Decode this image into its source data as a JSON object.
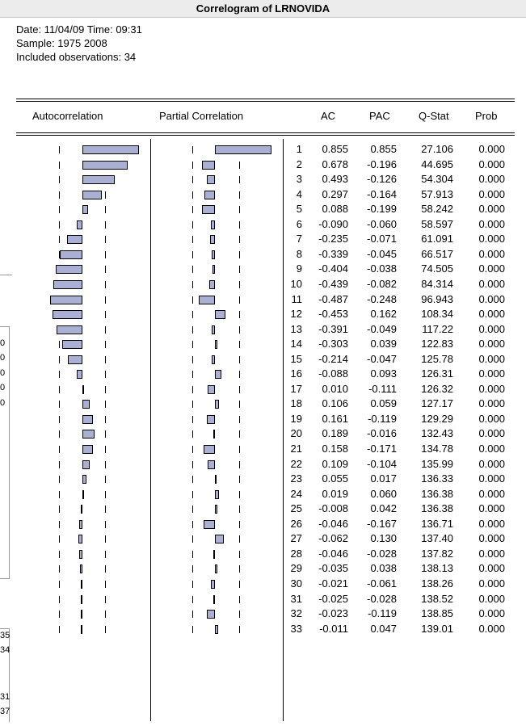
{
  "window": {
    "title": "Correlogram of LRNOVIDA"
  },
  "meta": {
    "date_line": "Date: 11/04/09   Time: 09:31",
    "sample_line": "Sample: 1975 2008",
    "obs_line": "Included observations: 34"
  },
  "headers": {
    "autocorrelation": "Autocorrelation",
    "partial_correlation": "Partial Correlation",
    "ac": "AC",
    "pac": "PAC",
    "qstat": "Q-Stat",
    "prob": "Prob"
  },
  "ghost_digits": [
    "0",
    "0",
    "0",
    "0",
    "0",
    "35",
    "34",
    "31",
    "37"
  ],
  "rows": [
    {
      "lag": "1",
      "ac": "0.855",
      "pac": "0.855",
      "q": "27.106",
      "p": "0.000"
    },
    {
      "lag": "2",
      "ac": "0.678",
      "pac": "-0.196",
      "q": "44.695",
      "p": "0.000"
    },
    {
      "lag": "3",
      "ac": "0.493",
      "pac": "-0.126",
      "q": "54.304",
      "p": "0.000"
    },
    {
      "lag": "4",
      "ac": "0.297",
      "pac": "-0.164",
      "q": "57.913",
      "p": "0.000"
    },
    {
      "lag": "5",
      "ac": "0.088",
      "pac": "-0.199",
      "q": "58.242",
      "p": "0.000"
    },
    {
      "lag": "6",
      "ac": "-0.090",
      "pac": "-0.060",
      "q": "58.597",
      "p": "0.000"
    },
    {
      "lag": "7",
      "ac": "-0.235",
      "pac": "-0.071",
      "q": "61.091",
      "p": "0.000"
    },
    {
      "lag": "8",
      "ac": "-0.339",
      "pac": "-0.045",
      "q": "66.517",
      "p": "0.000"
    },
    {
      "lag": "9",
      "ac": "-0.404",
      "pac": "-0.038",
      "q": "74.505",
      "p": "0.000"
    },
    {
      "lag": "10",
      "ac": "-0.439",
      "pac": "-0.082",
      "q": "84.314",
      "p": "0.000"
    },
    {
      "lag": "11",
      "ac": "-0.487",
      "pac": "-0.248",
      "q": "96.943",
      "p": "0.000"
    },
    {
      "lag": "12",
      "ac": "-0.453",
      "pac": "0.162",
      "q": "108.34",
      "p": "0.000"
    },
    {
      "lag": "13",
      "ac": "-0.391",
      "pac": "-0.049",
      "q": "117.22",
      "p": "0.000"
    },
    {
      "lag": "14",
      "ac": "-0.303",
      "pac": "0.039",
      "q": "122.83",
      "p": "0.000"
    },
    {
      "lag": "15",
      "ac": "-0.214",
      "pac": "-0.047",
      "q": "125.78",
      "p": "0.000"
    },
    {
      "lag": "16",
      "ac": "-0.088",
      "pac": "0.093",
      "q": "126.31",
      "p": "0.000"
    },
    {
      "lag": "17",
      "ac": "0.010",
      "pac": "-0.111",
      "q": "126.32",
      "p": "0.000"
    },
    {
      "lag": "18",
      "ac": "0.106",
      "pac": "0.059",
      "q": "127.17",
      "p": "0.000"
    },
    {
      "lag": "19",
      "ac": "0.161",
      "pac": "-0.119",
      "q": "129.29",
      "p": "0.000"
    },
    {
      "lag": "20",
      "ac": "0.189",
      "pac": "-0.016",
      "q": "132.43",
      "p": "0.000"
    },
    {
      "lag": "21",
      "ac": "0.158",
      "pac": "-0.171",
      "q": "134.78",
      "p": "0.000"
    },
    {
      "lag": "22",
      "ac": "0.109",
      "pac": "-0.104",
      "q": "135.99",
      "p": "0.000"
    },
    {
      "lag": "23",
      "ac": "0.055",
      "pac": "0.017",
      "q": "136.33",
      "p": "0.000"
    },
    {
      "lag": "24",
      "ac": "0.019",
      "pac": "0.060",
      "q": "136.38",
      "p": "0.000"
    },
    {
      "lag": "25",
      "ac": "-0.008",
      "pac": "0.042",
      "q": "136.38",
      "p": "0.000"
    },
    {
      "lag": "26",
      "ac": "-0.046",
      "pac": "-0.167",
      "q": "136.71",
      "p": "0.000"
    },
    {
      "lag": "27",
      "ac": "-0.062",
      "pac": "0.130",
      "q": "137.40",
      "p": "0.000"
    },
    {
      "lag": "28",
      "ac": "-0.046",
      "pac": "-0.028",
      "q": "137.82",
      "p": "0.000"
    },
    {
      "lag": "29",
      "ac": "-0.035",
      "pac": "0.038",
      "q": "138.13",
      "p": "0.000"
    },
    {
      "lag": "30",
      "ac": "-0.021",
      "pac": "-0.061",
      "q": "138.26",
      "p": "0.000"
    },
    {
      "lag": "31",
      "ac": "-0.025",
      "pac": "-0.028",
      "q": "138.52",
      "p": "0.000"
    },
    {
      "lag": "32",
      "ac": "-0.023",
      "pac": "-0.119",
      "q": "138.85",
      "p": "0.000"
    },
    {
      "lag": "33",
      "ac": "-0.011",
      "pac": "0.047",
      "q": "139.01",
      "p": "0.000"
    }
  ]
}
